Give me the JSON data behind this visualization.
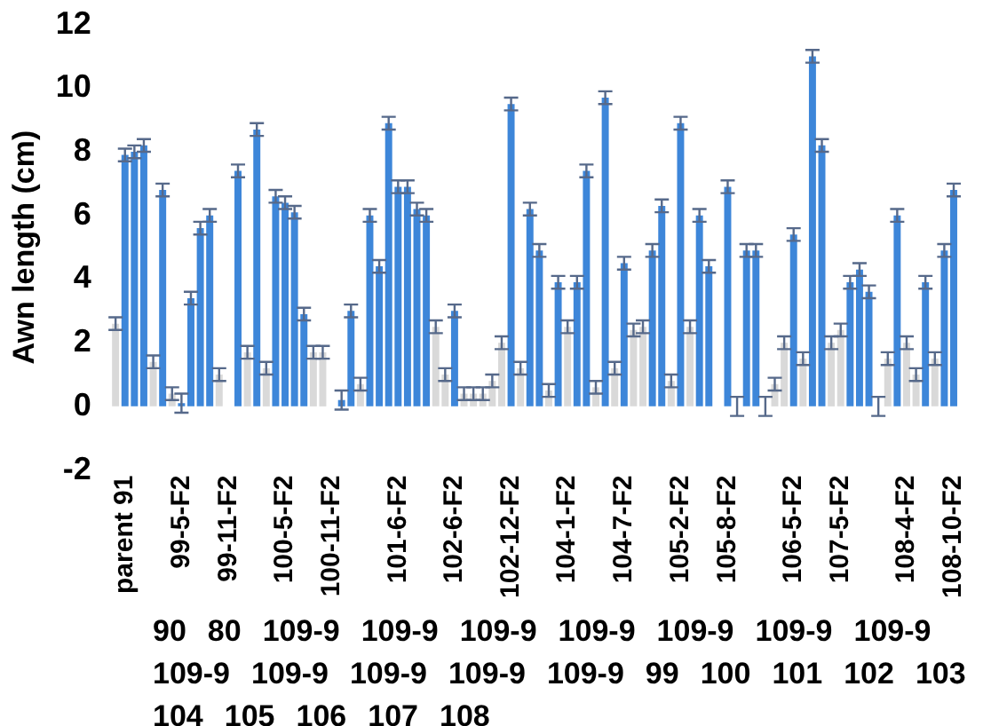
{
  "chart_data": {
    "type": "bar",
    "ylabel": "Awn length (cm)",
    "ylim": [
      -2,
      12
    ],
    "yticks": [
      -2,
      0,
      2,
      4,
      6,
      8,
      10,
      12
    ],
    "grid": false,
    "legend": false,
    "categories": [
      null,
      "parent 91",
      null,
      null,
      null,
      null,
      null,
      "99-5-F2",
      null,
      null,
      null,
      null,
      "99-11-F2",
      null,
      null,
      null,
      null,
      null,
      "100-5-F2",
      null,
      null,
      null,
      null,
      "100-11-F2",
      null,
      null,
      null,
      null,
      null,
      null,
      "101-6-F2",
      null,
      null,
      null,
      null,
      null,
      "102-6-F2",
      null,
      null,
      null,
      null,
      null,
      "102-12-F2",
      null,
      null,
      null,
      null,
      null,
      "104-1-F2",
      null,
      null,
      null,
      null,
      null,
      "104-7-F2",
      null,
      null,
      null,
      null,
      null,
      "105-2-F2",
      null,
      null,
      null,
      null,
      "105-8-F2",
      null,
      null,
      null,
      null,
      null,
      null,
      "106-5-F2",
      null,
      null,
      null,
      null,
      "107-5-F2",
      null,
      null,
      null,
      null,
      null,
      null,
      "108-4-F2",
      null,
      null,
      null,
      null,
      "108-10-F2"
    ],
    "values": [
      2.6,
      7.9,
      8.0,
      8.2,
      1.4,
      6.8,
      0.4,
      0.1,
      3.4,
      5.6,
      6.0,
      1.0,
      null,
      7.4,
      1.7,
      8.7,
      1.2,
      6.6,
      6.4,
      6.1,
      2.9,
      1.7,
      1.7,
      null,
      0.2,
      3.0,
      0.7,
      6.0,
      4.4,
      8.9,
      6.9,
      6.9,
      6.2,
      6.0,
      2.5,
      1.0,
      3.0,
      0.4,
      0.4,
      0.4,
      0.8,
      2.0,
      9.5,
      1.2,
      6.2,
      4.9,
      0.5,
      3.9,
      2.5,
      3.9,
      7.4,
      0.6,
      9.7,
      1.2,
      4.5,
      2.4,
      2.5,
      4.9,
      6.3,
      0.8,
      8.9,
      2.5,
      6.0,
      4.4,
      null,
      6.9,
      0,
      4.9,
      4.9,
      0,
      0.7,
      2.0,
      5.4,
      1.5,
      11.0,
      8.2,
      2.0,
      2.4,
      3.9,
      4.3,
      3.6,
      0,
      1.5,
      6.0,
      2.0,
      1.0,
      3.9,
      1.5,
      4.9,
      6.8
    ],
    "errors": [
      0.2,
      0.2,
      0.2,
      0.2,
      0.2,
      0.2,
      0.2,
      0.3,
      0.2,
      0.2,
      0.2,
      0.2,
      null,
      0.2,
      0.2,
      0.2,
      0.2,
      0.2,
      0.2,
      0.2,
      0.2,
      0.2,
      0.2,
      null,
      0.3,
      0.2,
      0.2,
      0.2,
      0.2,
      0.2,
      0.2,
      0.2,
      0.2,
      0.2,
      0.2,
      0.2,
      0.2,
      0.2,
      0.2,
      0.2,
      0.2,
      0.2,
      0.2,
      0.2,
      0.2,
      0.2,
      0.2,
      0.2,
      0.2,
      0.2,
      0.2,
      0.2,
      0.2,
      0.2,
      0.2,
      0.2,
      0.2,
      0.2,
      0.2,
      0.2,
      0.2,
      0.2,
      0.2,
      0.2,
      null,
      0.2,
      0.3,
      0.2,
      0.2,
      0.3,
      0.2,
      0.2,
      0.2,
      0.2,
      0.2,
      0.2,
      0.2,
      0.2,
      0.2,
      0.2,
      0.2,
      0.3,
      0.2,
      0.2,
      0.2,
      0.2,
      0.2,
      0.2,
      0.2,
      0.2
    ],
    "colors": [
      "#d9d9d9",
      "#3d86d9",
      "#3d86d9",
      "#3d86d9",
      "#d9d9d9",
      "#3d86d9",
      "#d9d9d9",
      "#3d86d9",
      "#3d86d9",
      "#3d86d9",
      "#3d86d9",
      "#d9d9d9",
      null,
      "#3d86d9",
      "#d9d9d9",
      "#3d86d9",
      "#d9d9d9",
      "#3d86d9",
      "#3d86d9",
      "#3d86d9",
      "#3d86d9",
      "#d9d9d9",
      "#d9d9d9",
      null,
      "#3d86d9",
      "#3d86d9",
      "#d9d9d9",
      "#3d86d9",
      "#3d86d9",
      "#3d86d9",
      "#3d86d9",
      "#3d86d9",
      "#3d86d9",
      "#3d86d9",
      "#d9d9d9",
      "#d9d9d9",
      "#3d86d9",
      "#d9d9d9",
      "#d9d9d9",
      "#d9d9d9",
      "#d9d9d9",
      "#d9d9d9",
      "#3d86d9",
      "#d9d9d9",
      "#3d86d9",
      "#3d86d9",
      "#d9d9d9",
      "#3d86d9",
      "#d9d9d9",
      "#3d86d9",
      "#3d86d9",
      "#d9d9d9",
      "#3d86d9",
      "#d9d9d9",
      "#3d86d9",
      "#d9d9d9",
      "#d9d9d9",
      "#3d86d9",
      "#3d86d9",
      "#d9d9d9",
      "#3d86d9",
      "#d9d9d9",
      "#3d86d9",
      "#3d86d9",
      null,
      "#3d86d9",
      "#3d86d9",
      "#3d86d9",
      "#3d86d9",
      "#3d86d9",
      "#d9d9d9",
      "#d9d9d9",
      "#3d86d9",
      "#d9d9d9",
      "#3d86d9",
      "#3d86d9",
      "#d9d9d9",
      "#d9d9d9",
      "#3d86d9",
      "#3d86d9",
      "#3d86d9",
      "#3d86d9",
      "#d9d9d9",
      "#3d86d9",
      "#d9d9d9",
      "#d9d9d9",
      "#3d86d9",
      "#d9d9d9",
      "#3d86d9",
      "#3d86d9"
    ],
    "annotations": [
      "90",
      "80",
      "109-9",
      "109-9",
      "109-9",
      "109-9",
      "109-9",
      "109-9",
      "109-9",
      "109-9",
      "109-9",
      "109-9",
      "109-9",
      "109-9",
      "99",
      "100",
      "101",
      "102",
      "103",
      "104",
      "105",
      "106",
      "107",
      "108"
    ]
  }
}
